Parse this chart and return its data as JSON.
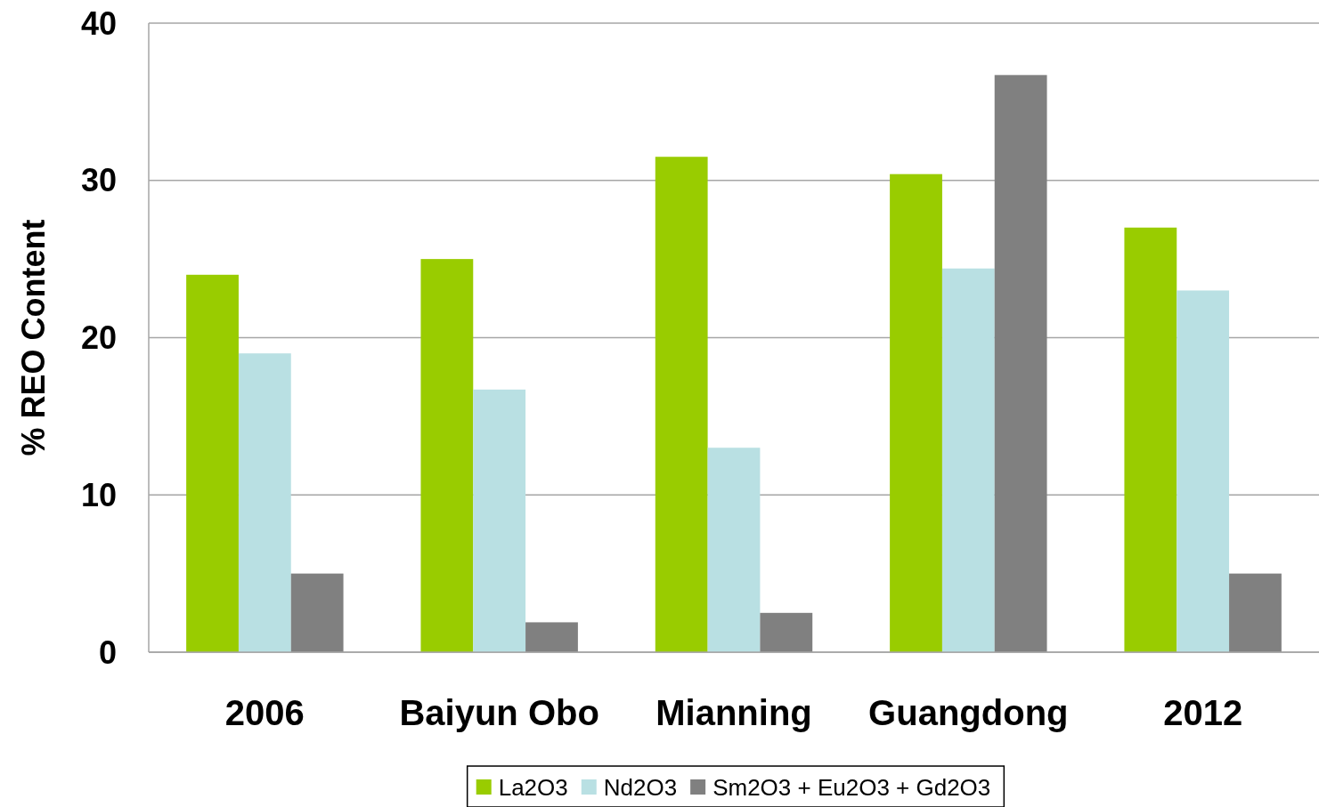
{
  "chart_data": {
    "type": "bar",
    "ylabel": "% REO Content",
    "categories": [
      "2006",
      "Baiyun Obo",
      "Mianning",
      "Guangdong",
      "2012"
    ],
    "series": [
      {
        "name": "La2O3",
        "color": "#99cc00",
        "values": [
          24.0,
          25.0,
          31.5,
          30.4,
          27.0
        ]
      },
      {
        "name": "Nd2O3",
        "color": "#b9e0e3",
        "values": [
          19.0,
          16.7,
          13.0,
          24.4,
          23.0
        ]
      },
      {
        "name": "Sm2O3 + Eu2O3 + Gd2O3",
        "color": "#808080",
        "values": [
          5.0,
          1.9,
          2.5,
          36.7,
          5.0
        ]
      }
    ],
    "ylim": [
      0,
      40
    ],
    "yticks": [
      0,
      10,
      20,
      30,
      40
    ],
    "grid": "y",
    "legend": "bottom"
  }
}
